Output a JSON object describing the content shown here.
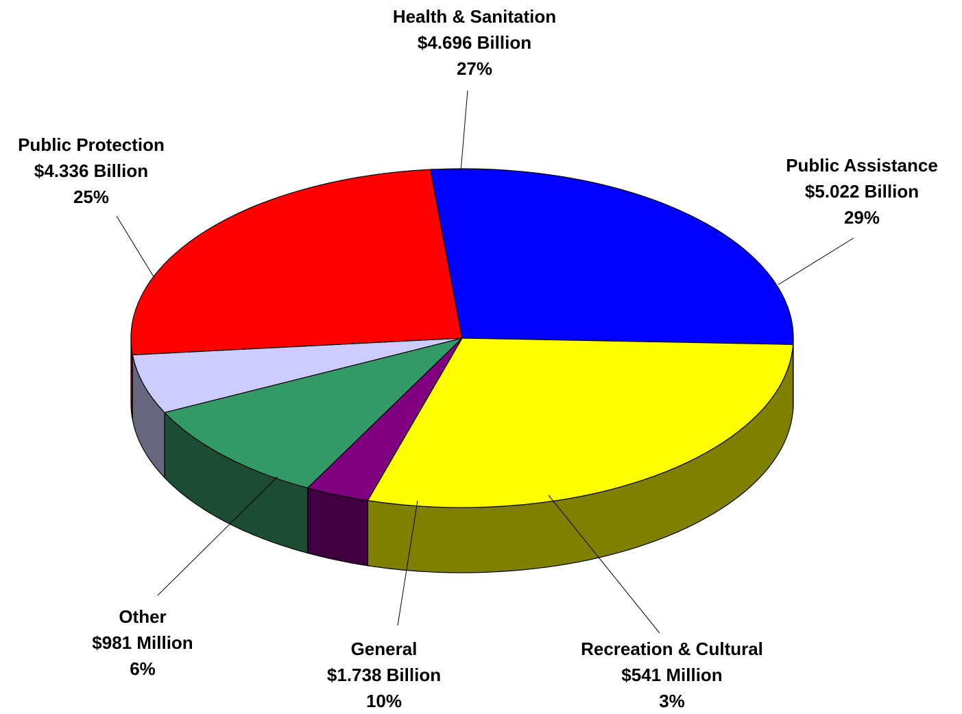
{
  "chart_data": {
    "type": "pie",
    "title": "",
    "slices": [
      {
        "name": "Health & Sanitation",
        "amount": "$4.696 Billion",
        "percent": "27%",
        "value": 4.696,
        "color": "#0000ff",
        "side_color": "#000080"
      },
      {
        "name": "Public Assistance",
        "amount": "$5.022 Billion",
        "percent": "29%",
        "value": 5.022,
        "color": "#ffff00",
        "side_color": "#808000"
      },
      {
        "name": "Recreation & Cultural",
        "amount": "$541 Million",
        "percent": "3%",
        "value": 0.541,
        "color": "#800080",
        "side_color": "#400040"
      },
      {
        "name": "General",
        "amount": "$1.738 Billion",
        "percent": "10%",
        "value": 1.738,
        "color": "#339966",
        "side_color": "#1c4c33"
      },
      {
        "name": "Other",
        "amount": "$981 Million",
        "percent": "6%",
        "value": 0.981,
        "color": "#ccccff",
        "side_color": "#66667f"
      },
      {
        "name": "Public Protection",
        "amount": "$4.336 Billion",
        "percent": "25%",
        "value": 4.336,
        "color": "#ff0000",
        "side_color": "#800000"
      }
    ]
  }
}
